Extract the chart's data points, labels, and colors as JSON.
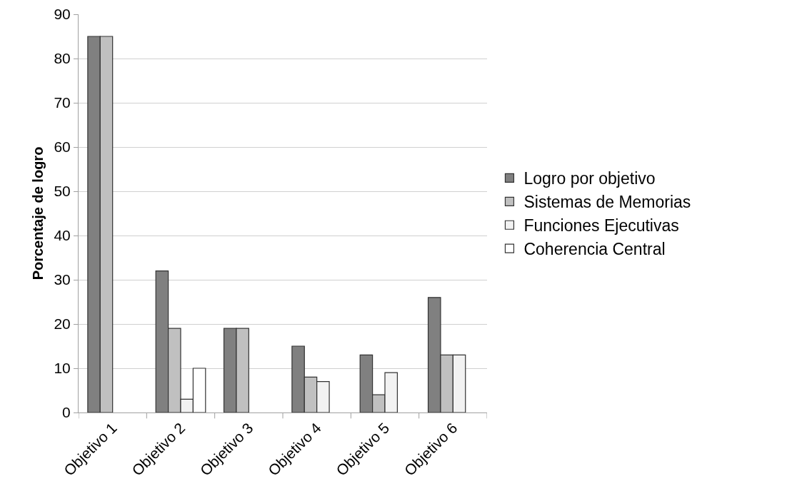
{
  "chart_data": {
    "type": "bar",
    "ylabel": "Porcentaje de logro",
    "categories": [
      "Objetivo 1",
      "Objetivo 2",
      "Objetivo 3",
      "Objetivo 4",
      "Objetivo 5",
      "Objetivo 6"
    ],
    "series": [
      {
        "name": "Logro por objetivo",
        "color": "#808080",
        "values": [
          85,
          32,
          19,
          15,
          13,
          26
        ]
      },
      {
        "name": "Sistemas de Memorias",
        "color": "#c0c0c0",
        "values": [
          85,
          19,
          19,
          8,
          4,
          13
        ]
      },
      {
        "name": "Funciones Ejecutivas",
        "color": "#f2f2f2",
        "values": [
          null,
          3,
          null,
          7,
          9,
          13
        ]
      },
      {
        "name": "Coherencia Central",
        "color": "#ffffff",
        "values": [
          null,
          10,
          null,
          null,
          null,
          null
        ]
      }
    ],
    "ylim": [
      0,
      90
    ],
    "yticks": [
      0,
      10,
      20,
      30,
      40,
      50,
      60,
      70,
      80,
      90
    ],
    "grid": "y",
    "legend": "right"
  }
}
